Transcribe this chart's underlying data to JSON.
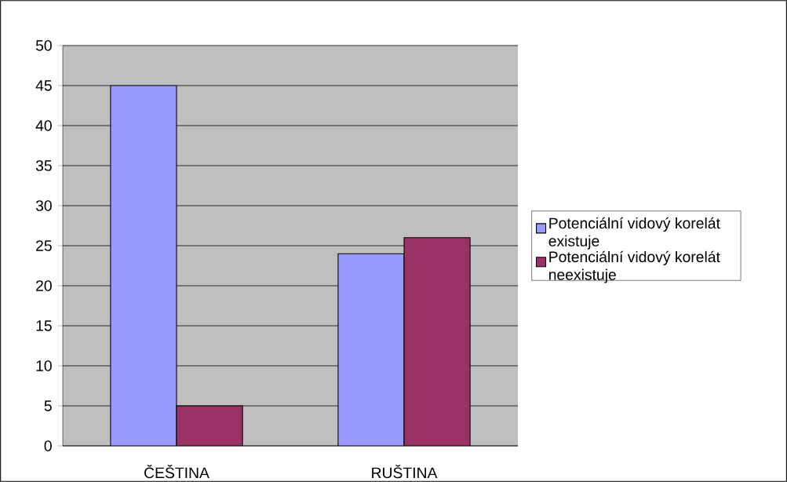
{
  "chart_data": {
    "type": "bar",
    "categories": [
      "ČEŠTINA",
      "RUŠTINA"
    ],
    "series": [
      {
        "name": "Potenciální vidový korelát existuje",
        "color": "#9999ff",
        "values": [
          45,
          24
        ]
      },
      {
        "name": "Potenciální vidový korelát neexistuje",
        "color": "#993366",
        "values": [
          5,
          26
        ]
      }
    ],
    "ylim": [
      0,
      50
    ],
    "yticks": [
      0,
      5,
      10,
      15,
      20,
      25,
      30,
      35,
      40,
      45,
      50
    ],
    "grid": "y",
    "legend": "right"
  }
}
